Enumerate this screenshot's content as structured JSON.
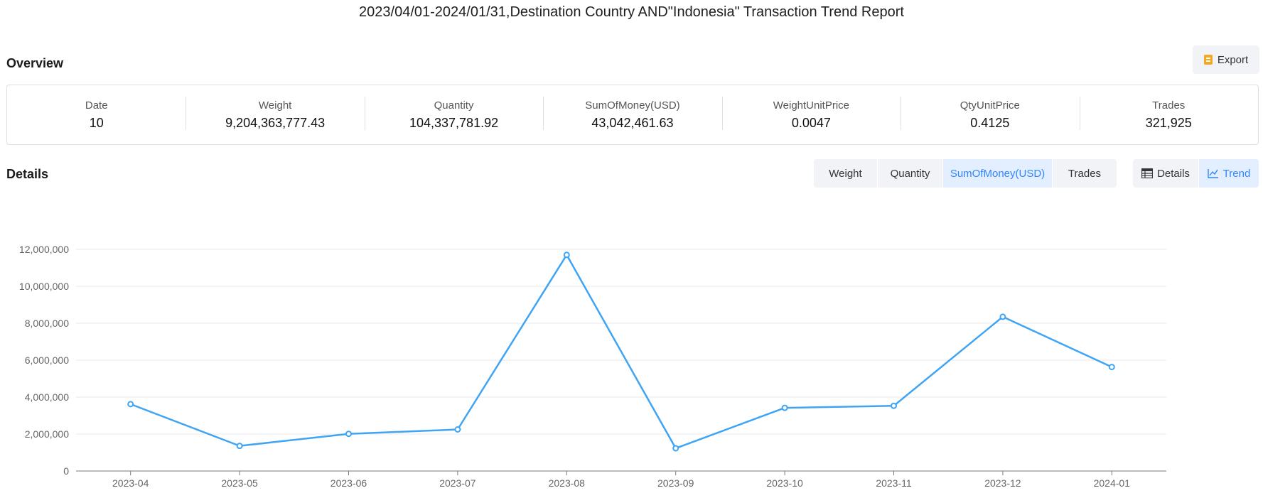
{
  "report": {
    "title": "2023/04/01-2024/01/31,Destination Country AND\"Indonesia\" Transaction Trend Report"
  },
  "overview": {
    "title": "Overview",
    "export_label": "Export",
    "metrics": [
      {
        "label": "Date",
        "value": "10"
      },
      {
        "label": "Weight",
        "value": "9,204,363,777.43"
      },
      {
        "label": "Quantity",
        "value": "104,337,781.92"
      },
      {
        "label": "SumOfMoney(USD)",
        "value": "43,042,461.63"
      },
      {
        "label": "WeightUnitPrice",
        "value": "0.0047"
      },
      {
        "label": "QtyUnitPrice",
        "value": "0.4125"
      },
      {
        "label": "Trades",
        "value": "321,925"
      }
    ]
  },
  "details": {
    "title": "Details",
    "metric_tabs": [
      {
        "label": "Weight",
        "active": false
      },
      {
        "label": "Quantity",
        "active": false
      },
      {
        "label": "SumOfMoney(USD)",
        "active": true
      },
      {
        "label": "Trades",
        "active": false
      }
    ],
    "view_tabs": [
      {
        "label": "Details",
        "icon": "table-icon",
        "active": false
      },
      {
        "label": "Trend",
        "icon": "line-chart-icon",
        "active": true
      }
    ]
  },
  "colors": {
    "accent": "#2f86ff",
    "line": "#3fa4f4",
    "grid": "#e8eaee",
    "axis": "#7a7a7a",
    "tick_text": "#666666"
  },
  "chart_data": {
    "type": "line",
    "categories": [
      "2023-04",
      "2023-05",
      "2023-06",
      "2023-07",
      "2023-08",
      "2023-09",
      "2023-10",
      "2023-11",
      "2023-12",
      "2024-01"
    ],
    "values": [
      3620000,
      1360000,
      2010000,
      2250000,
      11700000,
      1230000,
      3420000,
      3530000,
      8350000,
      5630000
    ],
    "yticks": [
      0,
      2000000,
      4000000,
      6000000,
      8000000,
      10000000,
      12000000
    ],
    "ytick_labels": [
      "0",
      "2,000,000",
      "4,000,000",
      "6,000,000",
      "8,000,000",
      "10,000,000",
      "12,000,000"
    ],
    "ylim": [
      0,
      12000000
    ],
    "grid": true,
    "legend": "none"
  }
}
